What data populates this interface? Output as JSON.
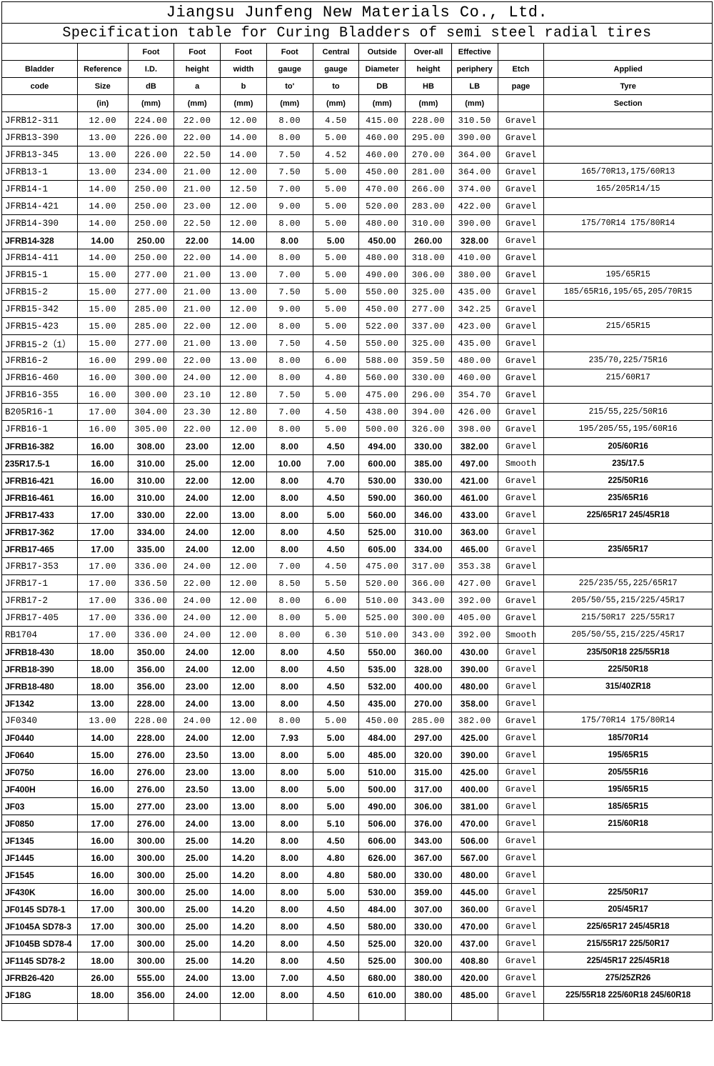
{
  "titles": {
    "t1": "Jiangsu Junfeng New Materials Co., Ltd.",
    "t2": "Specification table for Curing Bladders of semi steel radial tires"
  },
  "headers": {
    "r1": [
      "",
      "",
      "Foot",
      "Foot",
      "Foot",
      "Foot",
      "Central",
      "Outside",
      "Over-all",
      "Effective",
      "",
      ""
    ],
    "r2": [
      "Bladder",
      "Reference",
      "I.D.",
      "height",
      "width",
      "gauge",
      "gauge",
      "Diameter",
      "height",
      "periphery",
      "Etch",
      "Applied"
    ],
    "r3": [
      "code",
      "Size",
      "dB",
      "a",
      "b",
      "to'",
      "to",
      "DB",
      "HB",
      "LB",
      "page",
      "Tyre"
    ],
    "r4": [
      "",
      "(in)",
      "(mm)",
      "(mm)",
      "(mm)",
      "(mm)",
      "(mm)",
      "(mm)",
      "(mm)",
      "(mm)",
      "",
      "Section"
    ]
  },
  "rows": [
    {
      "b": 0,
      "c": [
        "JFRB12-311",
        "12.00",
        "224.00",
        "22.00",
        "12.00",
        "8.00",
        "4.50",
        "415.00",
        "228.00",
        "310.50",
        "Gravel",
        ""
      ]
    },
    {
      "b": 0,
      "c": [
        "JFRB13-390",
        "13.00",
        "226.00",
        "22.00",
        "14.00",
        "8.00",
        "5.00",
        "460.00",
        "295.00",
        "390.00",
        "Gravel",
        ""
      ]
    },
    {
      "b": 0,
      "c": [
        "JFRB13-345",
        "13.00",
        "226.00",
        "22.50",
        "14.00",
        "7.50",
        "4.52",
        "460.00",
        "270.00",
        "364.00",
        "Gravel",
        ""
      ]
    },
    {
      "b": 0,
      "c": [
        "JFRB13-1",
        "13.00",
        "234.00",
        "21.00",
        "12.00",
        "7.50",
        "5.00",
        "450.00",
        "281.00",
        "364.00",
        "Gravel",
        "165/70R13,175/60R13"
      ]
    },
    {
      "b": 0,
      "c": [
        "JFRB14-1",
        "14.00",
        "250.00",
        "21.00",
        "12.50",
        "7.00",
        "5.00",
        "470.00",
        "266.00",
        "374.00",
        "Gravel",
        "165/205R14/15"
      ]
    },
    {
      "b": 0,
      "c": [
        "JFRB14-421",
        "14.00",
        "250.00",
        "23.00",
        "12.00",
        "9.00",
        "5.00",
        "520.00",
        "283.00",
        "422.00",
        "Gravel",
        ""
      ]
    },
    {
      "b": 0,
      "c": [
        "JFRB14-390",
        "14.00",
        "250.00",
        "22.50",
        "12.00",
        "8.00",
        "5.00",
        "480.00",
        "310.00",
        "390.00",
        "Gravel",
        "175/70R14  175/80R14"
      ]
    },
    {
      "b": 1,
      "c": [
        "JFRB14-328",
        "14.00",
        "250.00",
        "22.00",
        "14.00",
        "8.00",
        "5.00",
        "450.00",
        "260.00",
        "328.00",
        "Gravel",
        ""
      ]
    },
    {
      "b": 0,
      "c": [
        "JFRB14-411",
        "14.00",
        "250.00",
        "22.00",
        "14.00",
        "8.00",
        "5.00",
        "480.00",
        "318.00",
        "410.00",
        "Gravel",
        ""
      ]
    },
    {
      "b": 0,
      "c": [
        "JFRB15-1",
        "15.00",
        "277.00",
        "21.00",
        "13.00",
        "7.00",
        "5.00",
        "490.00",
        "306.00",
        "380.00",
        "Gravel",
        "195/65R15"
      ]
    },
    {
      "b": 0,
      "c": [
        "JFRB15-2",
        "15.00",
        "277.00",
        "21.00",
        "13.00",
        "7.50",
        "5.00",
        "550.00",
        "325.00",
        "435.00",
        "Gravel",
        "185/65R16,195/65,205/70R15"
      ]
    },
    {
      "b": 0,
      "c": [
        "JFRB15-342",
        "15.00",
        "285.00",
        "21.00",
        "12.00",
        "9.00",
        "5.00",
        "450.00",
        "277.00",
        "342.25",
        "Gravel",
        ""
      ]
    },
    {
      "b": 0,
      "c": [
        "JFRB15-423",
        "15.00",
        "285.00",
        "22.00",
        "12.00",
        "8.00",
        "5.00",
        "522.00",
        "337.00",
        "423.00",
        "Gravel",
        "215/65R15"
      ]
    },
    {
      "b": 0,
      "c": [
        "JFRB15-2（1）",
        "15.00",
        "277.00",
        "21.00",
        "13.00",
        "7.50",
        "4.50",
        "550.00",
        "325.00",
        "435.00",
        "Gravel",
        ""
      ]
    },
    {
      "b": 0,
      "c": [
        "JFRB16-2",
        "16.00",
        "299.00",
        "22.00",
        "13.00",
        "8.00",
        "6.00",
        "588.00",
        "359.50",
        "480.00",
        "Gravel",
        "235/70,225/75R16"
      ]
    },
    {
      "b": 0,
      "c": [
        "JFRB16-460",
        "16.00",
        "300.00",
        "24.00",
        "12.00",
        "8.00",
        "4.80",
        "560.00",
        "330.00",
        "460.00",
        "Gravel",
        "215/60R17"
      ]
    },
    {
      "b": 0,
      "c": [
        "JFRB16-355",
        "16.00",
        "300.00",
        "23.10",
        "12.80",
        "7.50",
        "5.00",
        "475.00",
        "296.00",
        "354.70",
        "Gravel",
        ""
      ]
    },
    {
      "b": 0,
      "c": [
        "B205R16-1",
        "17.00",
        "304.00",
        "23.30",
        "12.80",
        "7.00",
        "4.50",
        "438.00",
        "394.00",
        "426.00",
        "Gravel",
        "215/55,225/50R16"
      ]
    },
    {
      "b": 0,
      "c": [
        "JFRB16-1",
        "16.00",
        "305.00",
        "22.00",
        "12.00",
        "8.00",
        "5.00",
        "500.00",
        "326.00",
        "398.00",
        "Gravel",
        "195/205/55,195/60R16"
      ]
    },
    {
      "b": 1,
      "c": [
        "JFRB16-382",
        "16.00",
        "308.00",
        "23.00",
        "12.00",
        "8.00",
        "4.50",
        "494.00",
        "330.00",
        "382.00",
        "Gravel",
        "205/60R16"
      ]
    },
    {
      "b": 1,
      "c": [
        "235R17.5-1",
        "16.00",
        "310.00",
        "25.00",
        "12.00",
        "10.00",
        "7.00",
        "600.00",
        "385.00",
        "497.00",
        "Smooth",
        "235/17.5"
      ]
    },
    {
      "b": 1,
      "c": [
        "JFRB16-421",
        "16.00",
        "310.00",
        "22.00",
        "12.00",
        "8.00",
        "4.70",
        "530.00",
        "330.00",
        "421.00",
        "Gravel",
        "225/50R16"
      ],
      "nv": [
        2,
        3,
        4,
        5,
        6,
        7,
        8,
        9
      ]
    },
    {
      "b": 1,
      "c": [
        "JFRB16-461",
        "16.00",
        "310.00",
        "24.00",
        "12.00",
        "8.00",
        "4.50",
        "590.00",
        "360.00",
        "461.00",
        "Gravel",
        "235/65R16"
      ]
    },
    {
      "b": 1,
      "c": [
        "JFRB17-433",
        "17.00",
        "330.00",
        "22.00",
        "13.00",
        "8.00",
        "5.00",
        "560.00",
        "346.00",
        "433.00",
        "Gravel",
        "225/65R17 245/45R18"
      ]
    },
    {
      "b": 1,
      "c": [
        "JFRB17-362",
        "17.00",
        "334.00",
        "24.00",
        "12.00",
        "8.00",
        "4.50",
        "525.00",
        "310.00",
        "363.00",
        "Gravel",
        ""
      ]
    },
    {
      "b": 1,
      "c": [
        "JFRB17-465",
        "17.00",
        "335.00",
        "24.00",
        "12.00",
        "8.00",
        "4.50",
        "605.00",
        "334.00",
        "465.00",
        "Gravel",
        "235/65R17"
      ]
    },
    {
      "b": 0,
      "c": [
        "JFRB17-353",
        "17.00",
        "336.00",
        "24.00",
        "12.00",
        "7.00",
        "4.50",
        "475.00",
        "317.00",
        "353.38",
        "Gravel",
        ""
      ]
    },
    {
      "b": 0,
      "c": [
        "JFRB17-1",
        "17.00",
        "336.50",
        "22.00",
        "12.00",
        "8.50",
        "5.50",
        "520.00",
        "366.00",
        "427.00",
        "Gravel",
        "225/235/55,225/65R17"
      ]
    },
    {
      "b": 0,
      "c": [
        "JFRB17-2",
        "17.00",
        "336.00",
        "24.00",
        "12.00",
        "8.00",
        "6.00",
        "510.00",
        "343.00",
        "392.00",
        "Gravel",
        "205/50/55,215/225/45R17"
      ]
    },
    {
      "b": 0,
      "c": [
        "JFRB17-405",
        "17.00",
        "336.00",
        "24.00",
        "12.00",
        "8.00",
        "5.00",
        "525.00",
        "300.00",
        "405.00",
        "Gravel",
        "215/50R17  225/55R17"
      ]
    },
    {
      "b": 0,
      "c": [
        "RB1704",
        "17.00",
        "336.00",
        "24.00",
        "12.00",
        "8.00",
        "6.30",
        "510.00",
        "343.00",
        "392.00",
        "Smooth",
        "205/50/55,215/225/45R17"
      ]
    },
    {
      "b": 1,
      "c": [
        "JFRB18-430",
        "18.00",
        "350.00",
        "24.00",
        "12.00",
        "8.00",
        "4.50",
        "550.00",
        "360.00",
        "430.00",
        "Gravel",
        "235/50R18 225/55R18"
      ]
    },
    {
      "b": 1,
      "c": [
        "JFRB18-390",
        "18.00",
        "356.00",
        "24.00",
        "12.00",
        "8.00",
        "4.50",
        "535.00",
        "328.00",
        "390.00",
        "Gravel",
        "225/50R18"
      ]
    },
    {
      "b": 1,
      "c": [
        "JFRB18-480",
        "18.00",
        "356.00",
        "23.00",
        "12.00",
        "8.00",
        "4.50",
        "532.00",
        "400.00",
        "480.00",
        "Gravel",
        "315/40ZR18"
      ]
    },
    {
      "b": 1,
      "c": [
        "JF1342",
        "13.00",
        "228.00",
        "24.00",
        "13.00",
        "8.00",
        "4.50",
        "435.00",
        "270.00",
        "358.00",
        "Gravel",
        ""
      ]
    },
    {
      "b": 0,
      "c": [
        "JF0340",
        "13.00",
        "228.00",
        "24.00",
        "12.00",
        "8.00",
        "5.00",
        "450.00",
        "285.00",
        "382.00",
        "Gravel",
        "175/70R14  175/80R14"
      ]
    },
    {
      "b": 1,
      "c": [
        "JF0440",
        "14.00",
        "228.00",
        "24.00",
        "12.00",
        "7.93",
        "5.00",
        "484.00",
        "297.00",
        "425.00",
        "Gravel",
        "185/70R14"
      ]
    },
    {
      "b": 1,
      "c": [
        "JF0640",
        "15.00",
        "276.00",
        "23.50",
        "13.00",
        "8.00",
        "5.00",
        "485.00",
        "320.00",
        "390.00",
        "Gravel",
        "195/65R15"
      ]
    },
    {
      "b": 1,
      "c": [
        "JF0750",
        "16.00",
        "276.00",
        "23.00",
        "13.00",
        "8.00",
        "5.00",
        "510.00",
        "315.00",
        "425.00",
        "Gravel",
        "205/55R16"
      ]
    },
    {
      "b": 1,
      "c": [
        "JF400H",
        "16.00",
        "276.00",
        "23.50",
        "13.00",
        "8.00",
        "5.00",
        "500.00",
        "317.00",
        "400.00",
        "Gravel",
        "195/65R15"
      ]
    },
    {
      "b": 1,
      "c": [
        "JF03",
        "15.00",
        "277.00",
        "23.00",
        "13.00",
        "8.00",
        "5.00",
        "490.00",
        "306.00",
        "381.00",
        "Gravel",
        "185/65R15"
      ]
    },
    {
      "b": 1,
      "c": [
        "JF0850",
        "17.00",
        "276.00",
        "24.00",
        "13.00",
        "8.00",
        "5.10",
        "506.00",
        "376.00",
        "470.00",
        "Gravel",
        "215/60R18"
      ]
    },
    {
      "b": 1,
      "c": [
        "JF1345",
        "16.00",
        "300.00",
        "25.00",
        "14.20",
        "8.00",
        "4.50",
        "606.00",
        "343.00",
        "506.00",
        "Gravel",
        ""
      ]
    },
    {
      "b": 1,
      "c": [
        "JF1445",
        "16.00",
        "300.00",
        "25.00",
        "14.20",
        "8.00",
        "4.80",
        "626.00",
        "367.00",
        "567.00",
        "Gravel",
        ""
      ]
    },
    {
      "b": 1,
      "c": [
        "JF1545",
        "16.00",
        "300.00",
        "25.00",
        "14.20",
        "8.00",
        "4.80",
        "580.00",
        "330.00",
        "480.00",
        "Gravel",
        ""
      ]
    },
    {
      "b": 1,
      "c": [
        "JF430K",
        "16.00",
        "300.00",
        "25.00",
        "14.00",
        "8.00",
        "5.00",
        "530.00",
        "359.00",
        "445.00",
        "Gravel",
        "225/50R17"
      ]
    },
    {
      "b": 1,
      "c": [
        "JF0145 SD78-1",
        "17.00",
        "300.00",
        "25.00",
        "14.20",
        "8.00",
        "4.50",
        "484.00",
        "307.00",
        "360.00",
        "Gravel",
        "205/45R17"
      ]
    },
    {
      "b": 1,
      "c": [
        "JF1045A SD78-3",
        "17.00",
        "300.00",
        "25.00",
        "14.20",
        "8.00",
        "4.50",
        "580.00",
        "330.00",
        "470.00",
        "Gravel",
        "225/65R17 245/45R18"
      ]
    },
    {
      "b": 1,
      "c": [
        "JF1045B SD78-4",
        "17.00",
        "300.00",
        "25.00",
        "14.20",
        "8.00",
        "4.50",
        "525.00",
        "320.00",
        "437.00",
        "Gravel",
        "215/55R17 225/50R17"
      ]
    },
    {
      "b": 1,
      "c": [
        "JF1145 SD78-2",
        "18.00",
        "300.00",
        "25.00",
        "14.20",
        "8.00",
        "4.50",
        "525.00",
        "300.00",
        "408.80",
        "Gravel",
        "225/45R17 225/45R18"
      ]
    },
    {
      "b": 1,
      "c": [
        "JFRB26-420",
        "26.00",
        "555.00",
        "24.00",
        "13.00",
        "7.00",
        "4.50",
        "680.00",
        "380.00",
        "420.00",
        "Gravel",
        "275/25ZR26"
      ]
    },
    {
      "b": 1,
      "c": [
        "JF18G",
        "18.00",
        "356.00",
        "24.00",
        "12.00",
        "8.00",
        "4.50",
        "610.00",
        "380.00",
        "485.00",
        "Gravel",
        "225/55R18 225/60R18 245/60R18"
      ]
    }
  ]
}
